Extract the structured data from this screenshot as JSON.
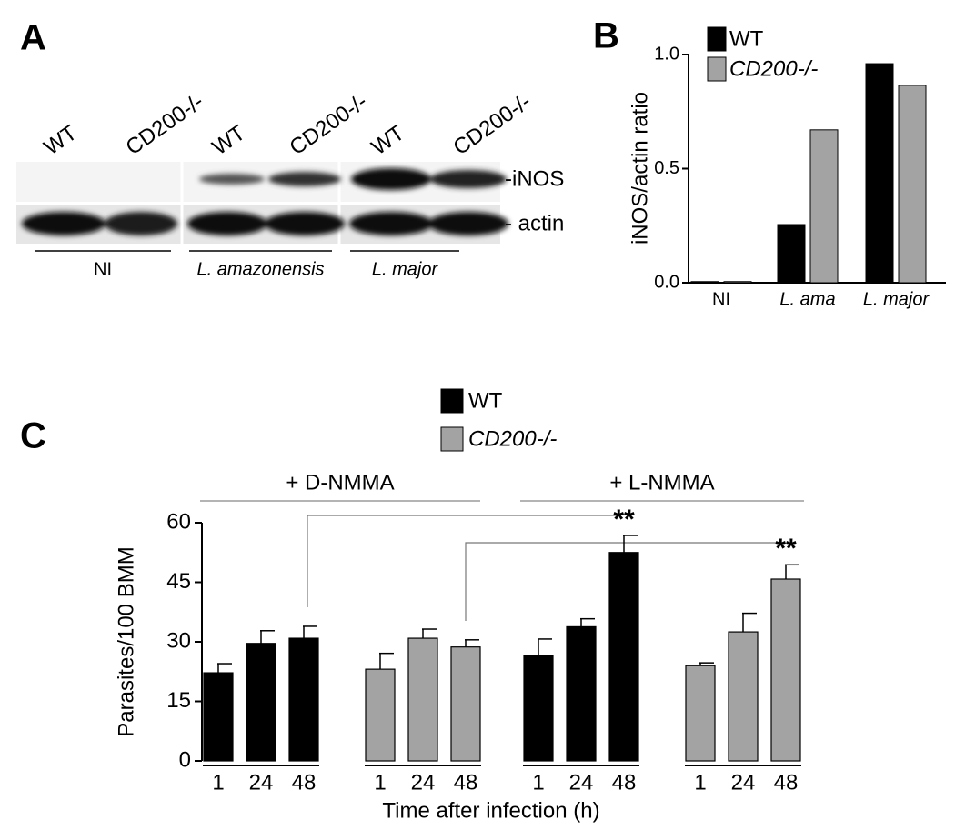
{
  "panel_labels": [
    "A",
    "B",
    "C"
  ],
  "blot": {
    "lanes": [
      "WT",
      "CD200-/-",
      "WT",
      "CD200-/-",
      "WT",
      "CD200-/-"
    ],
    "bands": [
      "-iNOS",
      "- actin"
    ],
    "groups": [
      {
        "name": "NI",
        "color": "#000000",
        "italic": false
      },
      {
        "name": "L. amazonensis",
        "color": "#1aa31a",
        "italic": true
      },
      {
        "name": "L. major",
        "color": "#e0201b",
        "italic": true
      }
    ]
  },
  "chart_data": [
    {
      "type": "bar",
      "ylabel": "iNOS/actin ratio",
      "categories": [
        "NI",
        "L. ama",
        "L. major"
      ],
      "category_colors": [
        "#000000",
        "#1aa31a",
        "#e0201b"
      ],
      "category_italic": [
        false,
        true,
        true
      ],
      "series": [
        {
          "name": "WT",
          "color": "#000000",
          "values": [
            0.005,
            0.255,
            0.96
          ]
        },
        {
          "name": "CD200-/-",
          "color": "#a3a3a3",
          "values": [
            0.005,
            0.67,
            0.865
          ]
        }
      ],
      "ylim": [
        0,
        1
      ],
      "yticks": [
        {
          "value": 0,
          "label": "0.0"
        },
        0.5,
        {
          "value": 1,
          "label": "1.0"
        }
      ]
    },
    {
      "type": "bar",
      "xlabel": "Time after infection (h)",
      "ylabel": "Parasites/100 BMM",
      "groups": [
        "+ D-NMMA",
        "+ L-NMMA"
      ],
      "categories": [
        "1",
        "24",
        "48",
        "1",
        "24",
        "48"
      ],
      "series": [
        {
          "name": "WT",
          "color": "#000000",
          "values": [
            22.2,
            29.6,
            30.9,
            26.5,
            33.8,
            52.5
          ],
          "errors": [
            2.3,
            3.2,
            3.0,
            4.2,
            2.0,
            4.3
          ],
          "annotations": [
            null,
            null,
            null,
            null,
            null,
            "**"
          ]
        },
        {
          "name": "CD200-/-",
          "color": "#a3a3a3",
          "values": [
            23.1,
            30.9,
            28.7,
            24.0,
            32.5,
            45.8
          ],
          "errors": [
            4.0,
            2.3,
            1.8,
            0.7,
            4.7,
            3.6
          ],
          "annotations": [
            null,
            null,
            null,
            null,
            null,
            "**"
          ]
        }
      ],
      "ylim": [
        0,
        60
      ],
      "yticks": [
        0,
        15,
        30,
        45,
        60
      ]
    }
  ]
}
